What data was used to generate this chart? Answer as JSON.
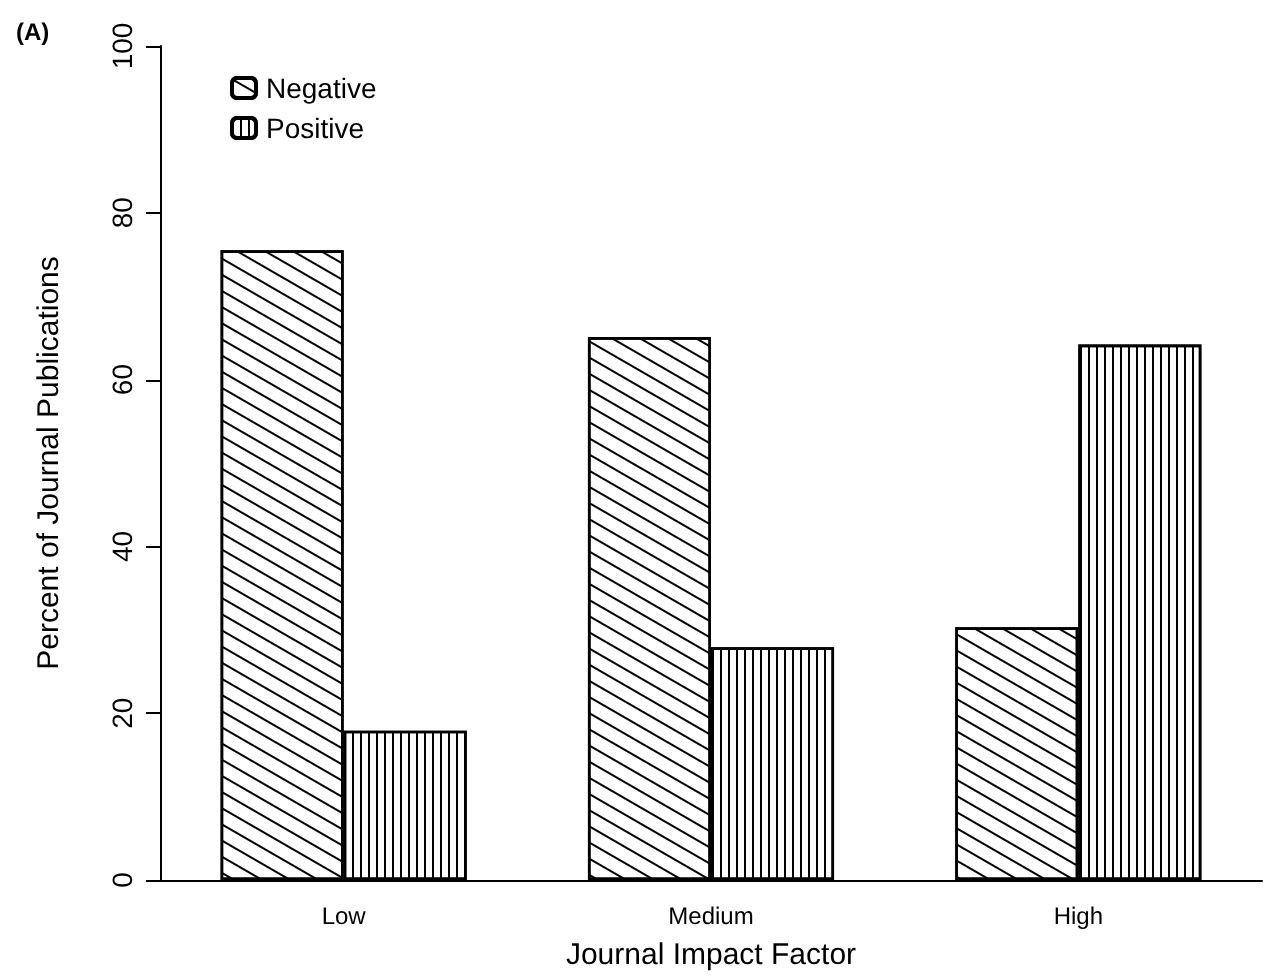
{
  "chart_data": {
    "type": "bar",
    "xlabel": "Journal Impact Factor",
    "ylabel": "Percent of Journal Publications",
    "annotations": [
      "(A)"
    ],
    "categories": [
      "Low",
      "Medium",
      "High"
    ],
    "series": [
      {
        "name": "Negative",
        "color": "#000000",
        "values": [
          75.5,
          65.1,
          30.3
        ]
      },
      {
        "name": "Positive",
        "color": "#000000",
        "values": [
          17.9,
          27.9,
          64.2
        ]
      }
    ],
    "ylim": [
      0,
      100
    ],
    "yticks": [
      0,
      20,
      40,
      60,
      80,
      100
    ],
    "grid": false,
    "legend": "top left"
  }
}
